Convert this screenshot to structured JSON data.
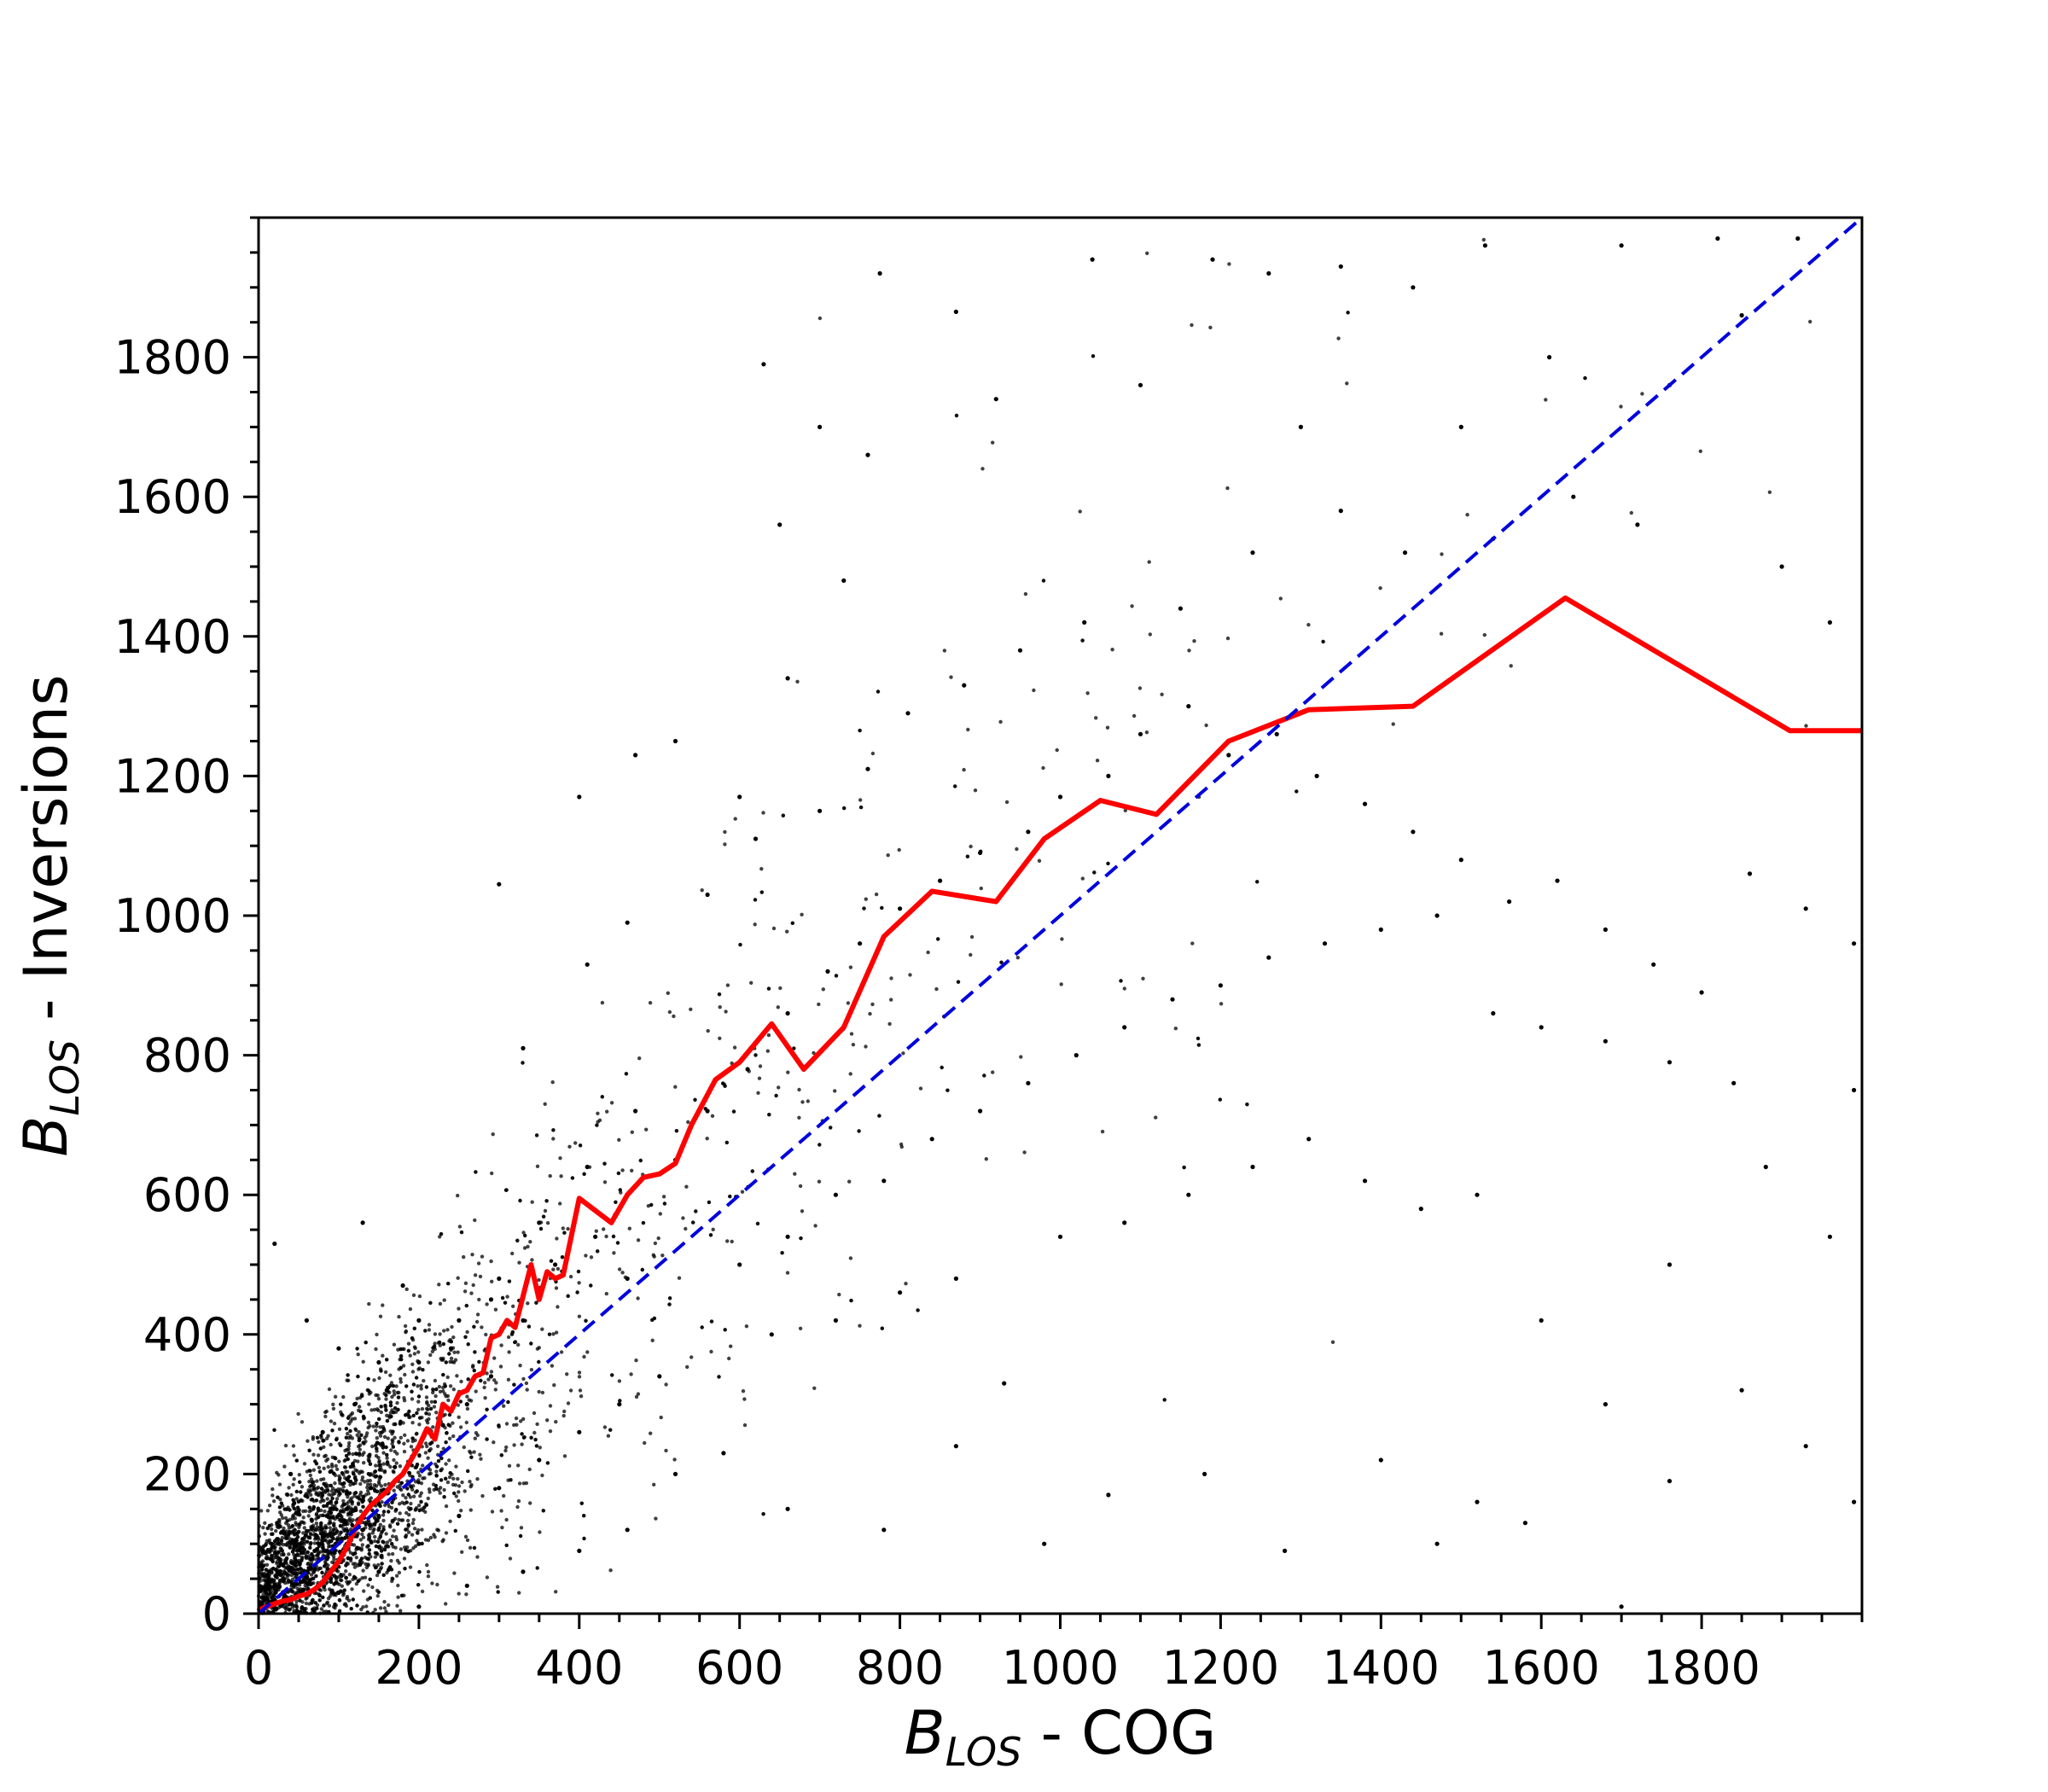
{
  "chart_data": {
    "type": "scatter",
    "title": "",
    "xlabel": {
      "base": "B",
      "sub": "LOS",
      "rest": " - COG"
    },
    "ylabel": {
      "base": "B",
      "sub": "LOS",
      "rest": " - Inversions"
    },
    "xlim": [
      0,
      2000
    ],
    "ylim": [
      0,
      2000
    ],
    "xticks": [
      0,
      200,
      400,
      600,
      800,
      1000,
      1200,
      1400,
      1600,
      1800
    ],
    "yticks": [
      0,
      200,
      400,
      600,
      800,
      1000,
      1200,
      1400,
      1600,
      1800
    ],
    "xtick_labels": [
      "0",
      "200",
      "400",
      "600",
      "800",
      "1000",
      "1200",
      "1400",
      "1600",
      "1800"
    ],
    "ytick_labels": [
      "0",
      "200",
      "400",
      "600",
      "800",
      "1000",
      "1200",
      "1400",
      "1600",
      "1800"
    ],
    "minor_tick_step": 50,
    "grid": false,
    "legend": "none",
    "colors": {
      "scatter": "#000000",
      "mean_line": "#ff0000",
      "identity_line": "#0000dd"
    },
    "series": [
      {
        "kind": "scatter",
        "description_points": "dense cloud of black dots concentrated near the origin and spreading along the identity line",
        "points": [
          [
            630,
            1790
          ],
          [
            775,
            1920
          ],
          [
            870,
            1865
          ],
          [
            1040,
            1940
          ],
          [
            1190,
            1940
          ],
          [
            1260,
            1920
          ],
          [
            1350,
            1930
          ],
          [
            1440,
            1900
          ],
          [
            1530,
            1960
          ],
          [
            1700,
            1960
          ],
          [
            1820,
            1970
          ],
          [
            1920,
            1970
          ],
          [
            700,
            1700
          ],
          [
            760,
            1660
          ],
          [
            920,
            1740
          ],
          [
            1100,
            1760
          ],
          [
            1300,
            1700
          ],
          [
            1500,
            1700
          ],
          [
            1610,
            1800
          ],
          [
            1760,
            1760
          ],
          [
            1850,
            1860
          ],
          [
            400,
            1170
          ],
          [
            470,
            1230
          ],
          [
            520,
            1250
          ],
          [
            600,
            1170
          ],
          [
            660,
            1340
          ],
          [
            730,
            1480
          ],
          [
            300,
            1045
          ],
          [
            650,
            1560
          ],
          [
            130,
            560
          ],
          [
            180,
            470
          ],
          [
            330,
            810
          ],
          [
            410,
            930
          ],
          [
            460,
            990
          ],
          [
            560,
            1030
          ],
          [
            620,
            1110
          ],
          [
            700,
            1150
          ],
          [
            760,
            1210
          ],
          [
            810,
            1290
          ],
          [
            880,
            1330
          ],
          [
            950,
            1380
          ],
          [
            1030,
            1420
          ],
          [
            1150,
            1440
          ],
          [
            1240,
            1520
          ],
          [
            1350,
            1580
          ],
          [
            1430,
            1520
          ],
          [
            1540,
            1540
          ],
          [
            1640,
            1600
          ],
          [
            1720,
            1560
          ],
          [
            1900,
            1500
          ],
          [
            1960,
            1420
          ],
          [
            520,
            650
          ],
          [
            560,
            720
          ],
          [
            610,
            780
          ],
          [
            660,
            860
          ],
          [
            710,
            920
          ],
          [
            750,
            960
          ],
          [
            800,
            1010
          ],
          [
            850,
            1050
          ],
          [
            900,
            1090
          ],
          [
            960,
            1120
          ],
          [
            1000,
            1170
          ],
          [
            1060,
            1200
          ],
          [
            1100,
            1260
          ],
          [
            1160,
            1300
          ],
          [
            1210,
            1230
          ],
          [
            1270,
            1260
          ],
          [
            1320,
            1200
          ],
          [
            1380,
            1160
          ],
          [
            1440,
            1120
          ],
          [
            1500,
            1080
          ],
          [
            1560,
            1020
          ],
          [
            1620,
            1050
          ],
          [
            1680,
            980
          ],
          [
            1740,
            930
          ],
          [
            1800,
            890
          ],
          [
            1860,
            1060
          ],
          [
            1930,
            1010
          ],
          [
            1990,
            960
          ],
          [
            600,
            500
          ],
          [
            660,
            540
          ],
          [
            720,
            600
          ],
          [
            780,
            620
          ],
          [
            840,
            680
          ],
          [
            900,
            720
          ],
          [
            960,
            760
          ],
          [
            1020,
            800
          ],
          [
            1080,
            840
          ],
          [
            1140,
            880
          ],
          [
            1200,
            900
          ],
          [
            1260,
            940
          ],
          [
            1330,
            960
          ],
          [
            1400,
            980
          ],
          [
            1470,
            1000
          ],
          [
            1540,
            860
          ],
          [
            1600,
            840
          ],
          [
            1680,
            820
          ],
          [
            1760,
            790
          ],
          [
            1840,
            760
          ],
          [
            1990,
            750
          ],
          [
            640,
            400
          ],
          [
            720,
            420
          ],
          [
            800,
            460
          ],
          [
            870,
            480
          ],
          [
            930,
            330
          ],
          [
            1000,
            540
          ],
          [
            1080,
            560
          ],
          [
            1160,
            600
          ],
          [
            1240,
            640
          ],
          [
            1310,
            680
          ],
          [
            1380,
            620
          ],
          [
            1450,
            580
          ],
          [
            1520,
            600
          ],
          [
            1600,
            420
          ],
          [
            1680,
            300
          ],
          [
            1760,
            500
          ],
          [
            1880,
            640
          ],
          [
            1960,
            540
          ],
          [
            660,
            150
          ],
          [
            780,
            120
          ],
          [
            870,
            240
          ],
          [
            980,
            100
          ],
          [
            1060,
            170
          ],
          [
            1180,
            200
          ],
          [
            1280,
            90
          ],
          [
            1400,
            220
          ],
          [
            1470,
            100
          ],
          [
            1520,
            160
          ],
          [
            1580,
            130
          ],
          [
            1700,
            10
          ],
          [
            1760,
            190
          ],
          [
            1850,
            320
          ],
          [
            1930,
            240
          ],
          [
            1990,
            160
          ],
          [
            20,
            530
          ],
          [
            60,
            420
          ],
          [
            100,
            380
          ],
          [
            150,
            360
          ],
          [
            200,
            420
          ],
          [
            240,
            380
          ],
          [
            290,
            450
          ],
          [
            330,
            420
          ],
          [
            370,
            500
          ],
          [
            420,
            540
          ],
          [
            460,
            480
          ],
          [
            40,
            200
          ],
          [
            80,
            260
          ],
          [
            120,
            300
          ],
          [
            160,
            320
          ],
          [
            200,
            360
          ],
          [
            250,
            420
          ],
          [
            300,
            480
          ],
          [
            350,
            560
          ],
          [
            410,
            640
          ],
          [
            470,
            720
          ],
          [
            50,
            50
          ],
          [
            80,
            110
          ],
          [
            110,
            150
          ],
          [
            140,
            180
          ],
          [
            170,
            210
          ],
          [
            200,
            240
          ],
          [
            230,
            270
          ],
          [
            260,
            300
          ],
          [
            290,
            340
          ],
          [
            100,
            30
          ],
          [
            150,
            60
          ],
          [
            200,
            100
          ],
          [
            250,
            140
          ],
          [
            300,
            180
          ],
          [
            350,
            220
          ],
          [
            400,
            260
          ],
          [
            450,
            300
          ],
          [
            500,
            340
          ],
          [
            10,
            10
          ],
          [
            20,
            40
          ],
          [
            30,
            70
          ],
          [
            40,
            20
          ],
          [
            60,
            60
          ],
          [
            70,
            90
          ],
          [
            90,
            50
          ],
          [
            110,
            100
          ],
          [
            130,
            120
          ],
          [
            150,
            140
          ],
          [
            200,
            10
          ],
          [
            260,
            40
          ],
          [
            330,
            60
          ],
          [
            400,
            90
          ],
          [
            460,
            120
          ],
          [
            520,
            200
          ],
          [
            580,
            230
          ]
        ]
      },
      {
        "kind": "line",
        "description": "mean of inversion values in bins of COG values",
        "x": [
          0,
          10,
          20,
          30,
          40,
          50,
          60,
          70,
          80,
          90,
          100,
          110,
          120,
          130,
          140,
          150,
          160,
          170,
          180,
          190,
          200,
          210,
          220,
          230,
          240,
          250,
          260,
          270,
          280,
          290,
          300,
          310,
          320,
          340,
          350,
          360,
          370,
          380,
          400,
          440,
          460,
          480,
          500,
          520,
          540,
          570,
          600,
          640,
          680,
          730,
          780,
          840,
          920,
          980,
          1050,
          1120,
          1210,
          1310,
          1440,
          1630,
          1910,
          2000
        ],
        "y": [
          5,
          10,
          14,
          18,
          20,
          25,
          28,
          35,
          45,
          60,
          75,
          95,
          120,
          140,
          155,
          165,
          175,
          190,
          200,
          220,
          240,
          265,
          250,
          300,
          290,
          315,
          320,
          340,
          345,
          395,
          400,
          420,
          410,
          500,
          450,
          490,
          480,
          485,
          595,
          560,
          600,
          625,
          630,
          645,
          700,
          765,
          790,
          845,
          780,
          840,
          970,
          1035,
          1020,
          1110,
          1165,
          1145,
          1250,
          1295,
          1300,
          1455,
          1265,
          1265
        ]
      },
      {
        "kind": "line",
        "style": "dashed",
        "description": "one-to-one line",
        "x": [
          0,
          2000
        ],
        "y": [
          0,
          2000
        ]
      }
    ]
  }
}
